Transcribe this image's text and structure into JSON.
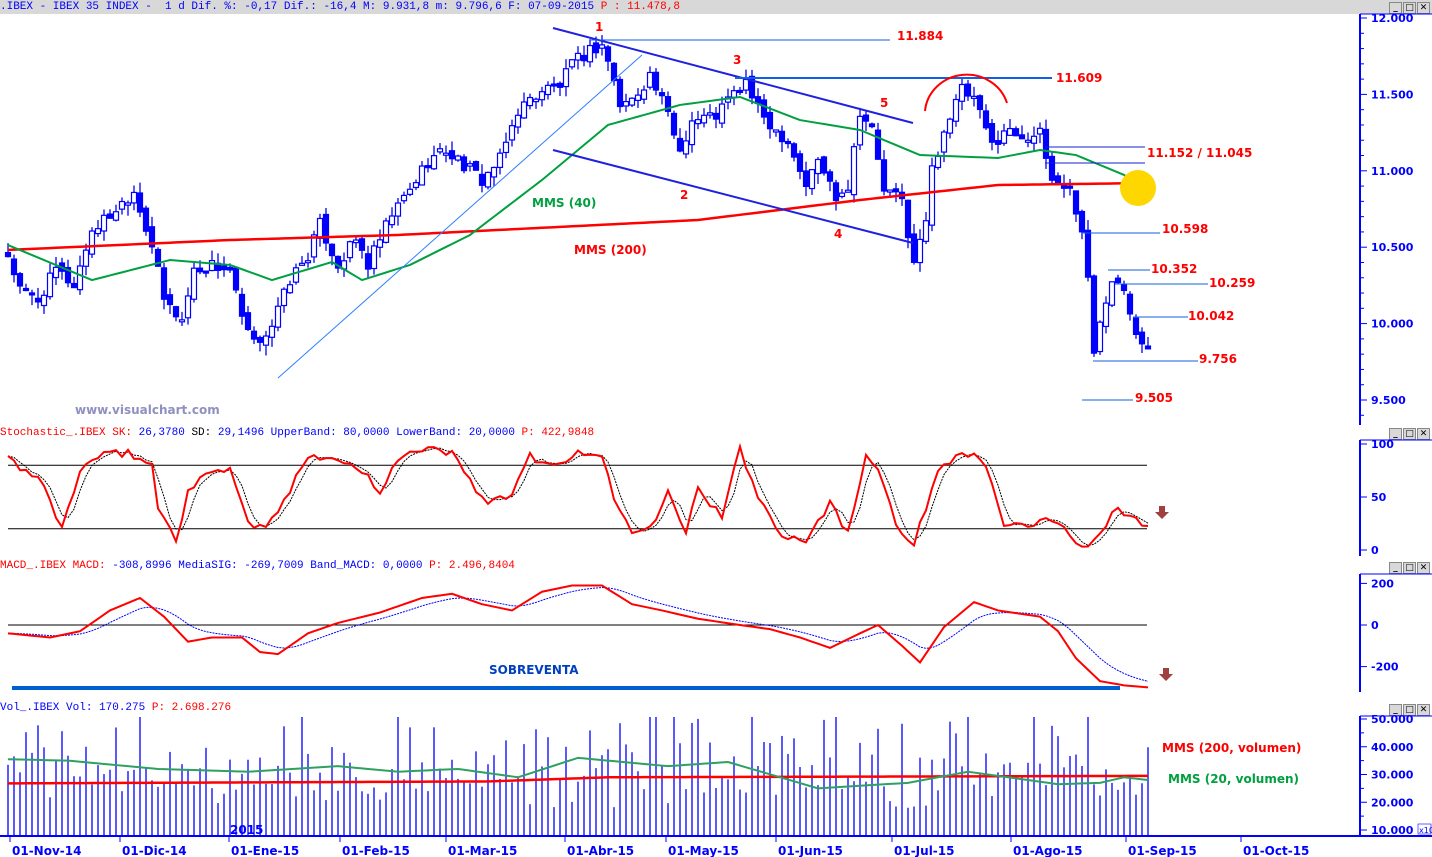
{
  "header": {
    "main": [
      {
        "text": ".IBEX - IBEX 35 INDEX -  1 d Dif. %: -0,17 Dif.: -16,4 M: 9.931,8 m: 9.796,6 F: 07-09-2015 ",
        "color": "#0000ff"
      },
      {
        "text": "P : 11.478,8",
        "color": "#ff0000"
      }
    ],
    "stochastic": [
      {
        "text": "Stochastic_.IBEX SK:",
        "color": "#ff0000"
      },
      {
        "text": " 26,3780 ",
        "color": "#0000ff"
      },
      {
        "text": "SD:",
        "color": "#000000"
      },
      {
        "text": " 29,1496 UpperBand: 80,0000 LowerBand: 20,0000 ",
        "color": "#0000ff"
      },
      {
        "text": "P: 422,9848",
        "color": "#ff0000"
      }
    ],
    "macd": [
      {
        "text": "MACD_.IBEX MACD:",
        "color": "#ff0000"
      },
      {
        "text": " -308,8996 MediaSIG: -269,7009 Band_MACD: 0,0000 ",
        "color": "#0000ff"
      },
      {
        "text": "P: 2.496,8404",
        "color": "#ff0000"
      }
    ],
    "volume": [
      {
        "text": "Vol_.IBEX Vol:",
        "color": "#0000ff"
      },
      {
        "text": " 170.275 ",
        "color": "#0000ff"
      },
      {
        "text": "P: 2.698.276",
        "color": "#ff0000"
      }
    ]
  },
  "window_buttons": {
    "minimize": "_",
    "maximize": "□",
    "close": "✕"
  },
  "watermark": "www.visualchart.com",
  "year_label": "2015",
  "volume_scale_note": "x10",
  "colors": {
    "bull_bear": "#0000ff",
    "mms200": "#ff0000",
    "mms40": "#00a040",
    "signal": "#0000ff",
    "highlight": "#ffd700",
    "arrow": "#a04040"
  },
  "dates": [
    "01-Nov-14",
    "01-Dic-14",
    "01-Ene-15",
    "01-Feb-15",
    "01-Mar-15",
    "01-Abr-15",
    "01-May-15",
    "01-Jun-15",
    "01-Jul-15",
    "01-Ago-15",
    "01-Sep-15",
    "01-Oct-15"
  ],
  "annotations": {
    "waves": [
      "1",
      "2",
      "3",
      "4",
      "5"
    ],
    "mms40_label": "MMS (40)",
    "mms200_label": "MMS (200)",
    "levels": [
      "11.884",
      "11.609",
      "11.152 / 11.045",
      "10.598",
      "10.352",
      "10.259",
      "10.042",
      "9.756",
      "9.505"
    ],
    "oversold_label": "SOBREVENTA",
    "vol_mms200_label": "MMS (200, volumen)",
    "vol_mms20_label": "MMS (20, volumen)"
  },
  "chart_data": [
    {
      "type": "candlestick",
      "title": "IBEX 35 INDEX",
      "x_unit": "trading-day bar index (01-Nov-14 to 07-09-2015)",
      "y_ticks": [
        "12.000",
        "11.500",
        "11.000",
        "10.500",
        "10.000",
        "9.500"
      ],
      "ylim": [
        9500,
        12000
      ],
      "close_path": [
        [
          0,
          10449
        ],
        [
          2,
          10220
        ],
        [
          5,
          10155
        ],
        [
          8,
          10351
        ],
        [
          11,
          10253
        ],
        [
          14,
          10613
        ],
        [
          17,
          10711
        ],
        [
          21,
          10874
        ],
        [
          24,
          10514
        ],
        [
          26,
          10155
        ],
        [
          29,
          10023
        ],
        [
          31,
          10351
        ],
        [
          34,
          10384
        ],
        [
          37,
          10351
        ],
        [
          39,
          10023
        ],
        [
          41,
          9860
        ],
        [
          44,
          9991
        ],
        [
          47,
          10285
        ],
        [
          50,
          10449
        ],
        [
          52,
          10646
        ],
        [
          55,
          10384
        ],
        [
          58,
          10547
        ],
        [
          60,
          10384
        ],
        [
          64,
          10711
        ],
        [
          67,
          10874
        ],
        [
          70,
          11071
        ],
        [
          73,
          11136
        ],
        [
          75,
          11071
        ],
        [
          79,
          10940
        ],
        [
          82,
          11071
        ],
        [
          85,
          11398
        ],
        [
          89,
          11529
        ],
        [
          92,
          11561
        ],
        [
          94,
          11692
        ],
        [
          97,
          11791
        ],
        [
          99,
          11823
        ],
        [
          100,
          11725
        ],
        [
          102,
          11431
        ],
        [
          104,
          11463
        ],
        [
          107,
          11627
        ],
        [
          110,
          11365
        ],
        [
          112,
          11136
        ],
        [
          114,
          11332
        ],
        [
          118,
          11365
        ],
        [
          120,
          11463
        ],
        [
          123,
          11581
        ],
        [
          125,
          11398
        ],
        [
          128,
          11267
        ],
        [
          130,
          11202
        ],
        [
          133,
          10907
        ],
        [
          135,
          11071
        ],
        [
          138,
          10842
        ],
        [
          140,
          10907
        ],
        [
          142,
          11398
        ],
        [
          144,
          11267
        ],
        [
          146,
          10874
        ],
        [
          149,
          10809
        ],
        [
          151,
          10384
        ],
        [
          153,
          10678
        ],
        [
          154,
          11005
        ],
        [
          156,
          11267
        ],
        [
          159,
          11529
        ],
        [
          161,
          11463
        ],
        [
          164,
          11169
        ],
        [
          166,
          11267
        ],
        [
          169,
          11234
        ],
        [
          172,
          11234
        ],
        [
          174,
          10940
        ],
        [
          176,
          10907
        ],
        [
          177,
          10874
        ],
        [
          179,
          10613
        ],
        [
          180,
          10285
        ],
        [
          181,
          9795
        ],
        [
          182,
          10023
        ],
        [
          184,
          10318
        ],
        [
          186,
          10253
        ],
        [
          188,
          9958
        ],
        [
          189,
          9893
        ],
        [
          190,
          9827
        ]
      ],
      "series": [
        {
          "name": "MMS (200)",
          "values": [
            [
              0,
              10482
            ],
            [
              37,
              10547
            ],
            [
              65,
              10580
            ],
            [
              115,
              10678
            ],
            [
              142,
              10809
            ],
            [
              165,
              10907
            ],
            [
              190,
              10920
            ]
          ]
        },
        {
          "name": "MMS (40)",
          "values": [
            [
              0,
              10514
            ],
            [
              14,
              10285
            ],
            [
              27,
              10416
            ],
            [
              37,
              10384
            ],
            [
              44,
              10285
            ],
            [
              54,
              10403
            ],
            [
              59,
              10285
            ],
            [
              67,
              10384
            ],
            [
              77,
              10580
            ],
            [
              89,
              10940
            ],
            [
              100,
              11300
            ],
            [
              112,
              11431
            ],
            [
              122,
              11483
            ],
            [
              132,
              11332
            ],
            [
              142,
              11267
            ],
            [
              152,
              11103
            ],
            [
              165,
              11084
            ],
            [
              172,
              11136
            ],
            [
              178,
              11103
            ],
            [
              186,
              10973
            ],
            [
              190,
              10862
            ]
          ]
        }
      ]
    },
    {
      "type": "line",
      "title": "Stochastic_.IBEX",
      "y_ticks": [
        "100",
        "50",
        "0"
      ],
      "ylim": [
        0,
        100
      ],
      "bands": [
        20,
        80
      ],
      "series": [
        {
          "name": "SK",
          "values": [
            [
              0,
              85
            ],
            [
              3,
              75
            ],
            [
              6,
              60
            ],
            [
              9,
              20
            ],
            [
              12,
              75
            ],
            [
              15,
              88
            ],
            [
              20,
              92
            ],
            [
              24,
              80
            ],
            [
              25,
              40
            ],
            [
              28,
              10
            ],
            [
              30,
              55
            ],
            [
              34,
              75
            ],
            [
              37,
              78
            ],
            [
              40,
              25
            ],
            [
              43,
              20
            ],
            [
              47,
              55
            ],
            [
              50,
              90
            ],
            [
              54,
              88
            ],
            [
              57,
              80
            ],
            [
              60,
              70
            ],
            [
              62,
              55
            ],
            [
              65,
              88
            ],
            [
              70,
              95
            ],
            [
              74,
              92
            ],
            [
              77,
              65
            ],
            [
              80,
              45
            ],
            [
              84,
              50
            ],
            [
              87,
              90
            ],
            [
              90,
              80
            ],
            [
              95,
              90
            ],
            [
              99,
              90
            ],
            [
              101,
              50
            ],
            [
              104,
              15
            ],
            [
              108,
              30
            ],
            [
              110,
              60
            ],
            [
              113,
              15
            ],
            [
              115,
              60
            ],
            [
              119,
              30
            ],
            [
              122,
              95
            ],
            [
              125,
              50
            ],
            [
              129,
              15
            ],
            [
              133,
              10
            ],
            [
              137,
              45
            ],
            [
              140,
              15
            ],
            [
              143,
              90
            ],
            [
              145,
              80
            ],
            [
              148,
              25
            ],
            [
              151,
              5
            ],
            [
              155,
              75
            ],
            [
              159,
              95
            ],
            [
              163,
              80
            ],
            [
              166,
              25
            ],
            [
              170,
              20
            ],
            [
              174,
              30
            ],
            [
              177,
              15
            ],
            [
              180,
              0
            ],
            [
              185,
              40
            ],
            [
              188,
              30
            ],
            [
              190,
              20
            ]
          ]
        }
      ]
    },
    {
      "type": "line",
      "title": "MACD_.IBEX",
      "y_ticks": [
        "200",
        "0",
        "-200"
      ],
      "ylim": [
        -320,
        220
      ],
      "series": [
        {
          "name": "MACD",
          "values": [
            [
              0,
              -40
            ],
            [
              7,
              -60
            ],
            [
              12,
              -30
            ],
            [
              17,
              70
            ],
            [
              22,
              130
            ],
            [
              26,
              40
            ],
            [
              30,
              -80
            ],
            [
              34,
              -60
            ],
            [
              39,
              -60
            ],
            [
              42,
              -130
            ],
            [
              45,
              -140
            ],
            [
              50,
              -40
            ],
            [
              55,
              10
            ],
            [
              62,
              60
            ],
            [
              69,
              130
            ],
            [
              74,
              150
            ],
            [
              79,
              100
            ],
            [
              84,
              70
            ],
            [
              89,
              160
            ],
            [
              94,
              190
            ],
            [
              99,
              190
            ],
            [
              104,
              100
            ],
            [
              109,
              70
            ],
            [
              115,
              30
            ],
            [
              122,
              0
            ],
            [
              127,
              -20
            ],
            [
              132,
              -60
            ],
            [
              137,
              -110
            ],
            [
              142,
              -40
            ],
            [
              145,
              0
            ],
            [
              149,
              -100
            ],
            [
              152,
              -180
            ],
            [
              156,
              -10
            ],
            [
              161,
              110
            ],
            [
              165,
              70
            ],
            [
              172,
              40
            ],
            [
              175,
              -30
            ],
            [
              178,
              -160
            ],
            [
              182,
              -270
            ],
            [
              186,
              -290
            ],
            [
              190,
              -300
            ]
          ]
        }
      ]
    },
    {
      "type": "bar",
      "title": "Vol_.IBEX",
      "y_ticks": [
        "50.000",
        "40.000",
        "30.000",
        "20.000",
        "10.000"
      ],
      "ylim": [
        10000,
        50000
      ],
      "series": [
        {
          "name": "MMS (20, volumen)",
          "values": [
            [
              0,
              35500
            ],
            [
              10,
              35000
            ],
            [
              25,
              32000
            ],
            [
              40,
              31000
            ],
            [
              55,
              33000
            ],
            [
              65,
              31000
            ],
            [
              75,
              32000
            ],
            [
              85,
              29000
            ],
            [
              95,
              36000
            ],
            [
              110,
              33000
            ],
            [
              120,
              34500
            ],
            [
              135,
              25000
            ],
            [
              150,
              27000
            ],
            [
              160,
              31000
            ],
            [
              175,
              26500
            ],
            [
              182,
              27000
            ],
            [
              186,
              29000
            ],
            [
              190,
              28000
            ]
          ]
        },
        {
          "name": "MMS (200, volumen)",
          "values": [
            [
              0,
              26800
            ],
            [
              80,
              27500
            ],
            [
              100,
              29000
            ],
            [
              190,
              29500
            ]
          ]
        }
      ]
    }
  ]
}
